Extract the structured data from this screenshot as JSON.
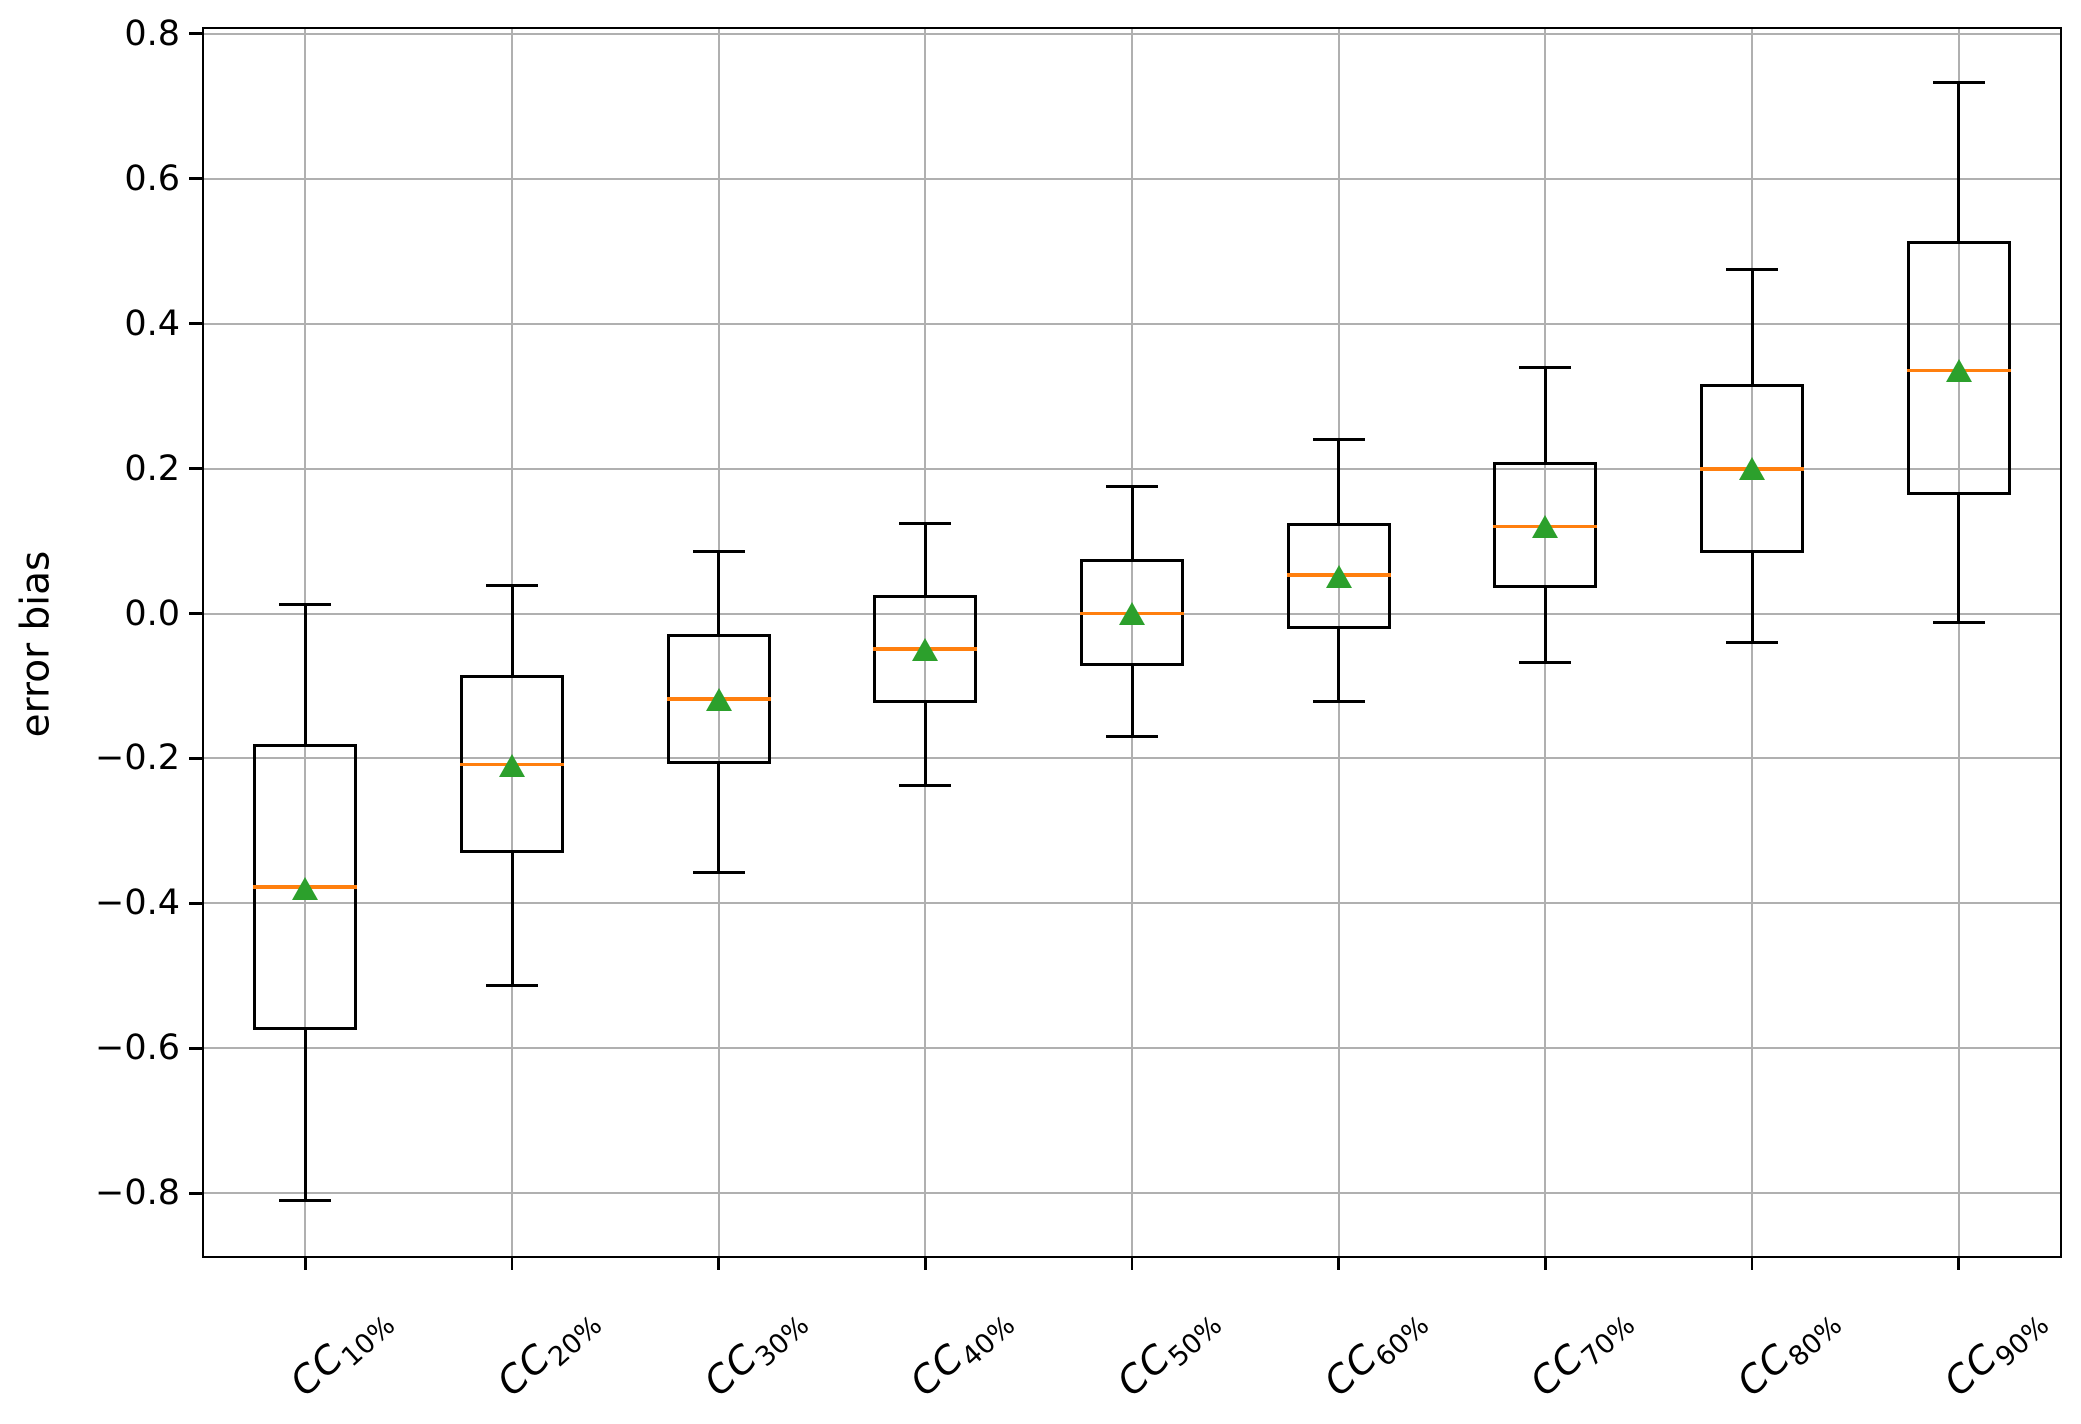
{
  "chart_data": {
    "type": "box",
    "title": "",
    "xlabel": "",
    "ylabel": "error bias",
    "ylim": [
      -0.889,
      0.809
    ],
    "grid": true,
    "legend": "none",
    "yticks": [
      {
        "value": 0.8,
        "label": "0.8"
      },
      {
        "value": 0.6,
        "label": "0.6"
      },
      {
        "value": 0.4,
        "label": "0.4"
      },
      {
        "value": 0.2,
        "label": "0.2"
      },
      {
        "value": 0.0,
        "label": "0.0"
      },
      {
        "value": -0.2,
        "label": "−0.2"
      },
      {
        "value": -0.4,
        "label": "−0.4"
      },
      {
        "value": -0.6,
        "label": "−0.6"
      },
      {
        "value": -0.8,
        "label": "−0.8"
      }
    ],
    "categories": [
      {
        "base": "CC",
        "sub": "10%"
      },
      {
        "base": "CC",
        "sub": "20%"
      },
      {
        "base": "CC",
        "sub": "30%"
      },
      {
        "base": "CC",
        "sub": "40%"
      },
      {
        "base": "CC",
        "sub": "50%"
      },
      {
        "base": "CC",
        "sub": "60%"
      },
      {
        "base": "CC",
        "sub": "70%"
      },
      {
        "base": "CC",
        "sub": "80%"
      },
      {
        "base": "CC",
        "sub": "90%"
      }
    ],
    "boxes": [
      {
        "label": "CC10%",
        "whislo": -0.81,
        "q1": -0.575,
        "med": -0.377,
        "mean": -0.38,
        "q3": -0.18,
        "whishi": 0.012
      },
      {
        "label": "CC20%",
        "whislo": -0.513,
        "q1": -0.33,
        "med": -0.208,
        "mean": -0.21,
        "q3": -0.085,
        "whishi": 0.038
      },
      {
        "label": "CC30%",
        "whislo": -0.357,
        "q1": -0.207,
        "med": -0.118,
        "mean": -0.12,
        "q3": -0.028,
        "whishi": 0.085
      },
      {
        "label": "CC40%",
        "whislo": -0.237,
        "q1": -0.123,
        "med": -0.049,
        "mean": -0.05,
        "q3": 0.026,
        "whishi": 0.124
      },
      {
        "label": "CC50%",
        "whislo": -0.17,
        "q1": -0.073,
        "med": 0.0,
        "mean": 0.0,
        "q3": 0.075,
        "whishi": 0.175
      },
      {
        "label": "CC60%",
        "whislo": -0.121,
        "q1": -0.022,
        "med": 0.053,
        "mean": 0.051,
        "q3": 0.125,
        "whishi": 0.24
      },
      {
        "label": "CC70%",
        "whislo": -0.068,
        "q1": 0.035,
        "med": 0.12,
        "mean": 0.12,
        "q3": 0.209,
        "whishi": 0.339
      },
      {
        "label": "CC80%",
        "whislo": -0.04,
        "q1": 0.084,
        "med": 0.199,
        "mean": 0.199,
        "q3": 0.317,
        "whishi": 0.474
      },
      {
        "label": "CC90%",
        "whislo": -0.012,
        "q1": 0.163,
        "med": 0.335,
        "mean": 0.335,
        "q3": 0.514,
        "whishi": 0.732
      }
    ],
    "colors": {
      "box": "#000000",
      "median": "#ff7f0e",
      "mean": "#2ca02c",
      "grid": "#b0b0b0",
      "background": "#ffffff"
    }
  }
}
